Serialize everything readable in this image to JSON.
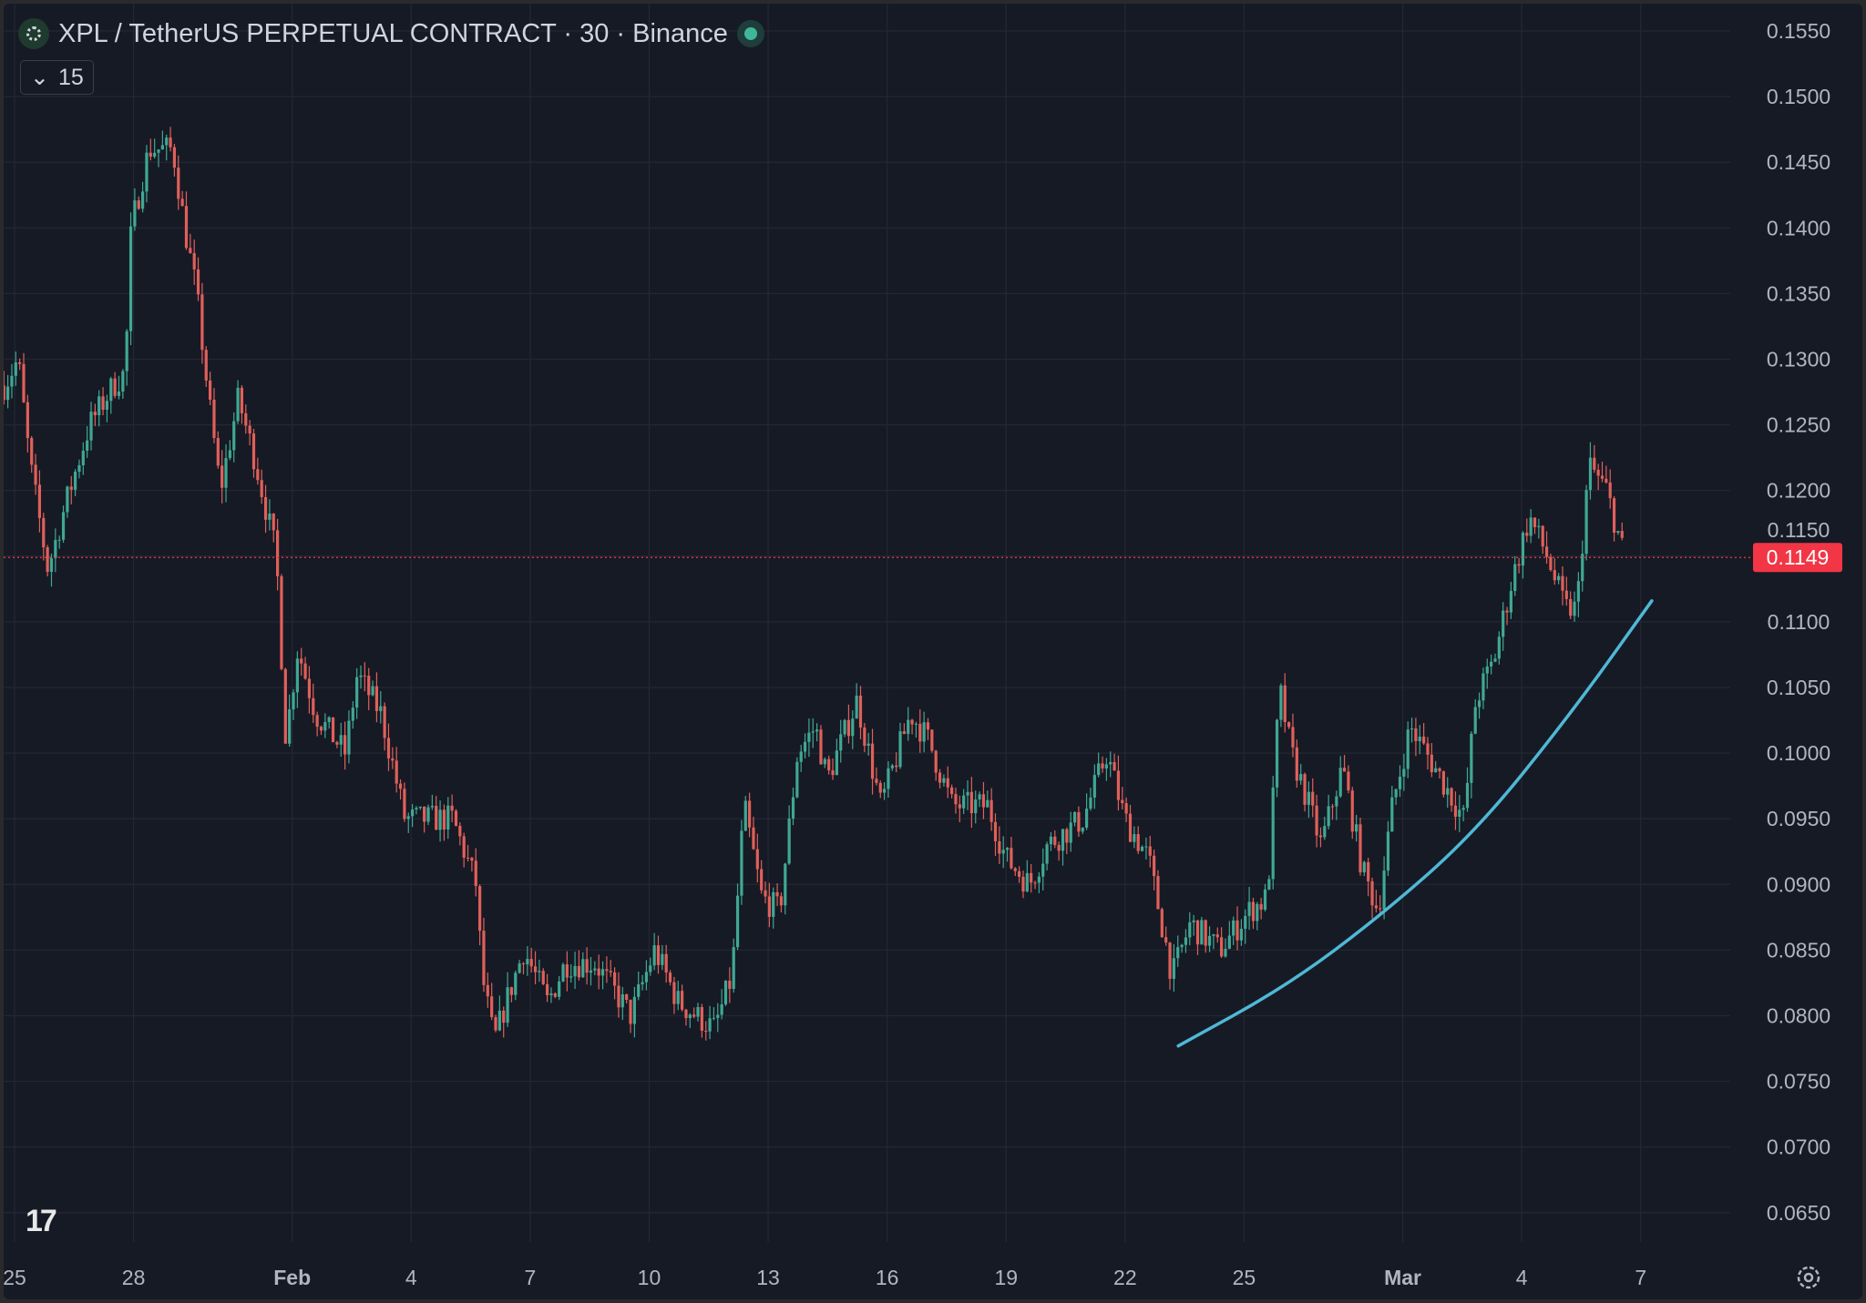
{
  "header": {
    "title": "XPL / TetherUS PERPETUAL CONTRACT · 30 · Binance",
    "indicator_value": "15",
    "chevron_icon": "chevron-down-icon",
    "status_icon": "market-open-dot"
  },
  "chart_data": {
    "type": "candlestick",
    "symbol": "XPL / TetherUS PERPETUAL CONTRACT",
    "interval": "30",
    "exchange": "Binance",
    "y_ticks": [
      "0.1550",
      "0.1500",
      "0.1450",
      "0.1400",
      "0.1350",
      "0.1300",
      "0.1250",
      "0.1200",
      "0.1150",
      "0.1100",
      "0.1050",
      "0.1000",
      "0.0950",
      "0.0900",
      "0.0850",
      "0.0800",
      "0.0750",
      "0.0700",
      "0.0650"
    ],
    "ylim": [
      0.0625,
      0.1575
    ],
    "x_ticks": [
      {
        "label": "25",
        "day": 0
      },
      {
        "label": "28",
        "day": 3
      },
      {
        "label": "Feb",
        "day": 7,
        "bold": true
      },
      {
        "label": "4",
        "day": 10
      },
      {
        "label": "7",
        "day": 13
      },
      {
        "label": "10",
        "day": 16
      },
      {
        "label": "13",
        "day": 19
      },
      {
        "label": "16",
        "day": 22
      },
      {
        "label": "19",
        "day": 25
      },
      {
        "label": "22",
        "day": 28
      },
      {
        "label": "25",
        "day": 31
      },
      {
        "label": "Mar",
        "day": 35,
        "bold": true
      },
      {
        "label": "4",
        "day": 38
      },
      {
        "label": "7",
        "day": 41
      }
    ],
    "last_price": "0.1149",
    "last_price_value": 0.1149,
    "colors": {
      "up": "#3fa894",
      "down": "#e0605a",
      "last": "#f23645",
      "trend": "#4fb8d6"
    },
    "price_path": [
      [
        -0.27,
        0.128
      ],
      [
        0.09,
        0.13
      ],
      [
        0.39,
        0.122
      ],
      [
        0.84,
        0.114
      ],
      [
        1.29,
        0.119
      ],
      [
        1.89,
        0.125
      ],
      [
        2.49,
        0.128
      ],
      [
        2.79,
        0.129
      ],
      [
        2.94,
        0.14
      ],
      [
        3.39,
        0.146
      ],
      [
        3.99,
        0.146
      ],
      [
        4.29,
        0.14
      ],
      [
        4.59,
        0.135
      ],
      [
        4.89,
        0.127
      ],
      [
        5.19,
        0.12
      ],
      [
        5.64,
        0.127
      ],
      [
        6.09,
        0.122
      ],
      [
        6.6,
        0.115
      ],
      [
        6.84,
        0.101
      ],
      [
        7.14,
        0.108
      ],
      [
        7.59,
        0.103
      ],
      [
        8.34,
        0.1
      ],
      [
        8.64,
        0.106
      ],
      [
        9.24,
        0.103
      ],
      [
        9.84,
        0.095
      ],
      [
        10.44,
        0.095
      ],
      [
        11.04,
        0.095
      ],
      [
        11.64,
        0.09
      ],
      [
        11.79,
        0.083
      ],
      [
        12.09,
        0.078
      ],
      [
        12.39,
        0.081
      ],
      [
        12.84,
        0.085
      ],
      [
        13.44,
        0.081
      ],
      [
        13.89,
        0.084
      ],
      [
        14.64,
        0.084
      ],
      [
        15.54,
        0.08
      ],
      [
        16.14,
        0.085
      ],
      [
        16.74,
        0.081
      ],
      [
        17.64,
        0.079
      ],
      [
        18.09,
        0.083
      ],
      [
        18.39,
        0.096
      ],
      [
        18.84,
        0.089
      ],
      [
        19.29,
        0.088
      ],
      [
        19.74,
        0.1
      ],
      [
        20.19,
        0.102
      ],
      [
        20.49,
        0.098
      ],
      [
        21.24,
        0.104
      ],
      [
        21.84,
        0.096
      ],
      [
        22.59,
        0.103
      ],
      [
        23.04,
        0.101
      ],
      [
        23.64,
        0.096
      ],
      [
        24.54,
        0.096
      ],
      [
        24.99,
        0.092
      ],
      [
        25.59,
        0.09
      ],
      [
        26.04,
        0.093
      ],
      [
        26.94,
        0.095
      ],
      [
        27.54,
        0.1
      ],
      [
        27.99,
        0.095
      ],
      [
        28.59,
        0.092
      ],
      [
        29.19,
        0.083
      ],
      [
        29.64,
        0.087
      ],
      [
        30.39,
        0.085
      ],
      [
        31.14,
        0.088
      ],
      [
        31.59,
        0.089
      ],
      [
        31.89,
        0.105
      ],
      [
        32.19,
        0.1
      ],
      [
        32.64,
        0.096
      ],
      [
        32.94,
        0.093
      ],
      [
        33.48,
        0.099
      ],
      [
        33.99,
        0.091
      ],
      [
        34.38,
        0.088
      ],
      [
        34.74,
        0.096
      ],
      [
        35.19,
        0.102
      ],
      [
        35.79,
        0.099
      ],
      [
        36.54,
        0.095
      ],
      [
        36.84,
        0.104
      ],
      [
        37.29,
        0.107
      ],
      [
        37.74,
        0.113
      ],
      [
        38.19,
        0.118
      ],
      [
        38.64,
        0.115
      ],
      [
        39.09,
        0.111
      ],
      [
        39.39,
        0.111
      ],
      [
        39.69,
        0.122
      ],
      [
        40.14,
        0.12
      ],
      [
        40.59,
        0.1149
      ]
    ],
    "trend_curve": [
      [
        29.34,
        0.0777
      ],
      [
        32.04,
        0.0822
      ],
      [
        34.44,
        0.0876
      ],
      [
        36.84,
        0.094
      ],
      [
        39.24,
        0.103
      ],
      [
        41.28,
        0.1116
      ]
    ]
  }
}
